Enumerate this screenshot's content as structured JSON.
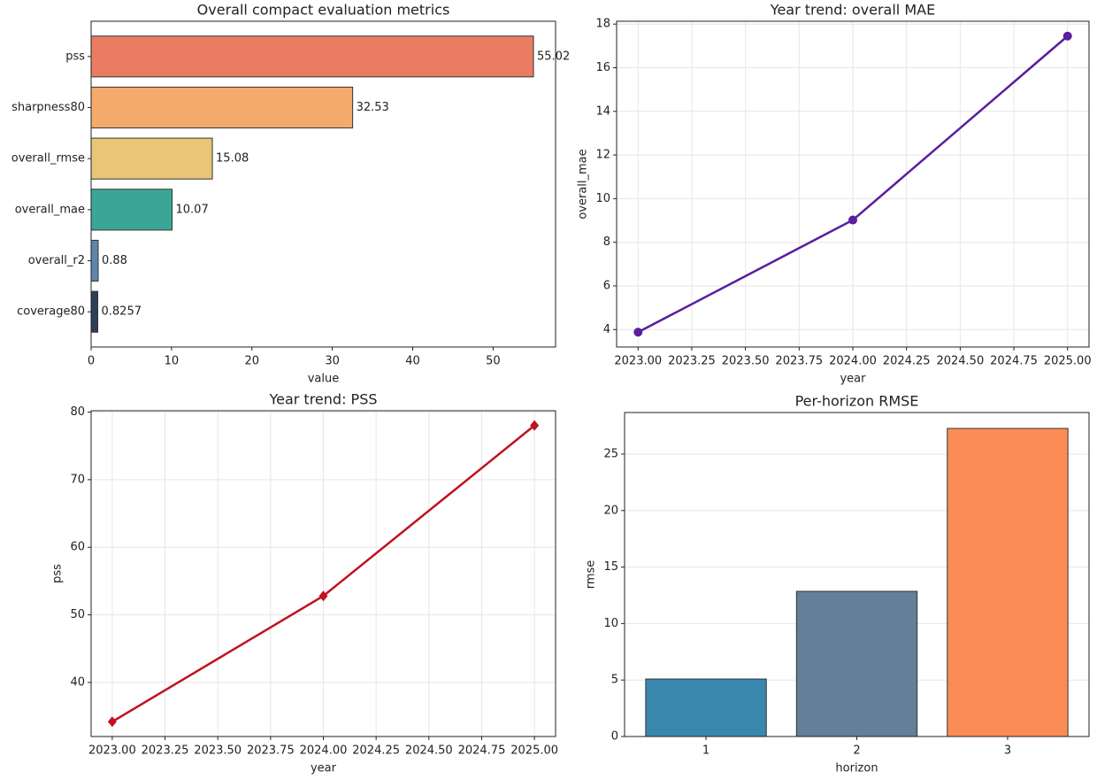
{
  "chart_data": [
    {
      "type": "barh",
      "title": "Overall compact evaluation metrics",
      "xlabel": "value",
      "categories": [
        "pss",
        "sharpness80",
        "overall_rmse",
        "overall_mae",
        "overall_r2",
        "coverage80"
      ],
      "values": [
        55.02,
        32.53,
        15.08,
        10.07,
        0.88,
        0.8257
      ],
      "colors": [
        "#e97c63",
        "#f3aa6b",
        "#e9c676",
        "#3ca696",
        "#5f86aa",
        "#2c3e58"
      ],
      "xlim": [
        0,
        57.77
      ],
      "xticks": [
        0,
        10,
        20,
        30,
        40,
        50
      ],
      "grid": false
    },
    {
      "type": "line",
      "title": "Year trend: overall MAE",
      "xlabel": "year",
      "ylabel": "overall_mae",
      "x": [
        2023,
        2024,
        2025
      ],
      "values": [
        3.88,
        9.02,
        17.45
      ],
      "color": "#5a1e9e",
      "marker": "circle",
      "xlim": [
        2022.9,
        2025.1
      ],
      "xticks": [
        {
          "value": 2023,
          "label": "2023.00"
        },
        {
          "value": 2023.25,
          "label": "2023.25"
        },
        {
          "value": 2023.5,
          "label": "2023.50"
        },
        {
          "value": 2023.75,
          "label": "2023.75"
        },
        {
          "value": 2024,
          "label": "2024.00"
        },
        {
          "value": 2024.25,
          "label": "2024.25"
        },
        {
          "value": 2024.5,
          "label": "2024.50"
        },
        {
          "value": 2024.75,
          "label": "2024.75"
        },
        {
          "value": 2025,
          "label": "2025.00"
        }
      ],
      "ylim": [
        3.2,
        18.13
      ],
      "yticks": [
        4,
        6,
        8,
        10,
        12,
        14,
        16,
        18
      ],
      "grid": true
    },
    {
      "type": "line",
      "title": "Year trend: PSS",
      "xlabel": "year",
      "ylabel": "pss",
      "x": [
        2023,
        2024,
        2025
      ],
      "values": [
        34.19,
        52.8,
        78.02
      ],
      "color": "#c1121f",
      "marker": "diamond",
      "xlim": [
        2022.9,
        2025.1
      ],
      "xticks": [
        {
          "value": 2023,
          "label": "2023.00"
        },
        {
          "value": 2023.25,
          "label": "2023.25"
        },
        {
          "value": 2023.5,
          "label": "2023.50"
        },
        {
          "value": 2023.75,
          "label": "2023.75"
        },
        {
          "value": 2024,
          "label": "2024.00"
        },
        {
          "value": 2024.25,
          "label": "2024.25"
        },
        {
          "value": 2024.5,
          "label": "2024.50"
        },
        {
          "value": 2024.75,
          "label": "2024.75"
        },
        {
          "value": 2025,
          "label": "2025.00"
        }
      ],
      "ylim": [
        32.0,
        80.2
      ],
      "yticks": [
        40,
        50,
        60,
        70,
        80
      ],
      "grid": true
    },
    {
      "type": "bar",
      "title": "Per-horizon RMSE",
      "xlabel": "horizon",
      "ylabel": "rmse",
      "categories": [
        "1",
        "2",
        "3"
      ],
      "values": [
        5.09,
        12.85,
        27.27
      ],
      "colors": [
        "#3a87ad",
        "#647f98",
        "#fb8c55"
      ],
      "ylim": [
        0,
        28.68
      ],
      "yticks": [
        0,
        5,
        10,
        15,
        20,
        25
      ],
      "grid": true
    }
  ]
}
